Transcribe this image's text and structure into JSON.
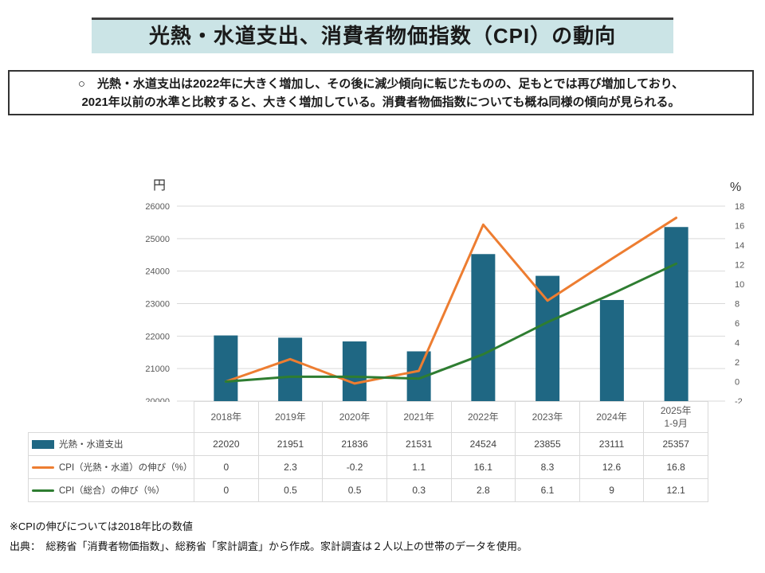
{
  "title": "光熱・水道支出、消費者物価指数（CPI）の動向",
  "summary": {
    "line1": "○　光熱・水道支出は2022年に大きく増加し、その後に減少傾向に転じたものの、足もとでは再び増加しており、",
    "line2": "2021年以前の水準と比較すると、大きく増加している。消費者物価指数についても概ね同様の傾向が見られる。"
  },
  "theme": {
    "title_bg": "#CBE4E6",
    "grid_color": "#D9D9D9",
    "tick_label_color": "#595959"
  },
  "chart_data": {
    "type": "bar+line",
    "categories": [
      "2018年",
      "2019年",
      "2020年",
      "2021年",
      "2022年",
      "2023年",
      "2024年",
      "2025年\n1-9月"
    ],
    "series": [
      {
        "name": "光熱・水道支出",
        "type": "bar",
        "axis": "left",
        "color": "#1F6783",
        "values": [
          22020,
          21951,
          21836,
          21531,
          24524,
          23855,
          23111,
          25357
        ]
      },
      {
        "name": "CPI（光熱・水道）の伸び（%）",
        "type": "line",
        "axis": "right",
        "color": "#ED7D31",
        "values": [
          0,
          2.3,
          -0.2,
          1.1,
          16.1,
          8.3,
          12.6,
          16.8
        ]
      },
      {
        "name": "CPI（総合）の伸び（%）",
        "type": "line",
        "axis": "right",
        "color": "#2E7D31",
        "values": [
          0,
          0.5,
          0.5,
          0.3,
          2.8,
          6.1,
          9,
          12.1
        ]
      }
    ],
    "left_axis": {
      "label": "円",
      "min": 20000,
      "max": 26000,
      "step": 1000
    },
    "right_axis": {
      "label": "%",
      "min": -2,
      "max": 18,
      "step": 2
    },
    "grid": true,
    "legend_position": "table-left-column"
  },
  "footnotes": {
    "note": "※CPIの伸びについては2018年比の数値",
    "source": "出典：　総務省「消費者物価指数」、総務省「家計調査」から作成。家計調査は２人以上の世帯のデータを使用。"
  }
}
